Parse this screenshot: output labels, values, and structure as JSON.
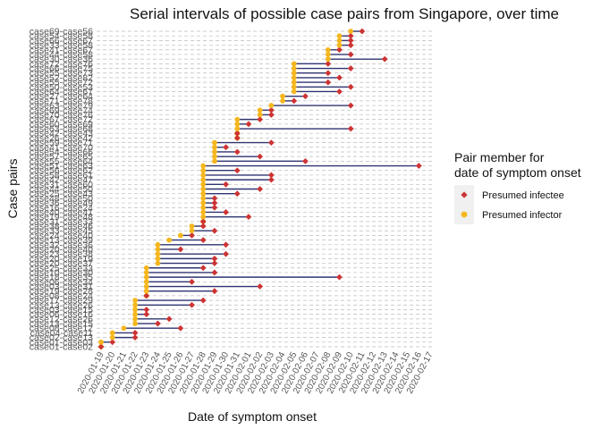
{
  "chart_data": {
    "type": "dumbbell",
    "title": "Serial intervals of possible case pairs from Singapore, over time",
    "xlabel": "Date of symptom onset",
    "ylabel": "Case pairs",
    "x_ticks": [
      "2020-01-19",
      "2020-01-20",
      "2020-01-21",
      "2020-01-22",
      "2020-01-23",
      "2020-01-24",
      "2020-01-25",
      "2020-01-26",
      "2020-01-27",
      "2020-01-28",
      "2020-01-29",
      "2020-01-30",
      "2020-01-31",
      "2020-02-01",
      "2020-02-02",
      "2020-02-03",
      "2020-02-04",
      "2020-02-05",
      "2020-02-06",
      "2020-02-07",
      "2020-02-08",
      "2020-02-09",
      "2020-02-10",
      "2020-02-11",
      "2020-02-12",
      "2020-02-13",
      "2020-02-14",
      "2020-02-15",
      "2020-02-16",
      "2020-02-17"
    ],
    "xlim": [
      "2020-01-19",
      "2020-02-17"
    ],
    "legend": {
      "title": "Pair member for\ndate of symptom onset",
      "placement": "right",
      "items": [
        {
          "label": "Presumed infectee",
          "color": "#cc3333",
          "shape": "diamond"
        },
        {
          "label": "Presumed infector",
          "color": "#f5b71f",
          "shape": "circle"
        }
      ]
    },
    "colors": {
      "segment": "#2e3470",
      "infectee": "#cc3333",
      "infector": "#f5b71f",
      "gridline": "#bbbbbb"
    },
    "pairs": [
      {
        "label": "case01-case02",
        "infector": "2020-01-19",
        "infectee": "2020-01-19"
      },
      {
        "label": "case01-case03",
        "infector": "2020-01-19",
        "infectee": "2020-01-20"
      },
      {
        "label": "case02-case13",
        "infector": "2020-01-20",
        "infectee": "2020-01-22"
      },
      {
        "label": "case04-case11",
        "infector": "2020-01-20",
        "infectee": "2020-01-22"
      },
      {
        "label": "case08-case12",
        "infector": "2020-01-21",
        "infectee": "2020-01-26"
      },
      {
        "label": "case13-case15",
        "infector": "2020-01-22",
        "infectee": "2020-01-24"
      },
      {
        "label": "case12-case26",
        "infector": "2020-01-22",
        "infectee": "2020-01-25"
      },
      {
        "label": "case06-case16",
        "infector": "2020-01-22",
        "infectee": "2020-01-23"
      },
      {
        "label": "case03-case15",
        "infector": "2020-01-22",
        "infectee": "2020-01-23"
      },
      {
        "label": "case13-case26",
        "infector": "2020-01-22",
        "infectee": "2020-01-27"
      },
      {
        "label": "case17-case29",
        "infector": "2020-01-22",
        "infectee": "2020-01-28"
      },
      {
        "label": "case08-case24",
        "infector": "2020-01-23",
        "infectee": "2020-01-23"
      },
      {
        "label": "case19-case28",
        "infector": "2020-01-23",
        "infectee": "2020-01-29"
      },
      {
        "label": "case03-case31",
        "infector": "2020-01-23",
        "infectee": "2020-02-02"
      },
      {
        "label": "case06-case34",
        "infector": "2020-01-23",
        "infectee": "2020-01-27"
      },
      {
        "label": "case18-case35",
        "infector": "2020-01-23",
        "infectee": "2020-02-09"
      },
      {
        "label": "case10-case30",
        "infector": "2020-01-23",
        "infectee": "2020-01-29"
      },
      {
        "label": "case25-case33",
        "infector": "2020-01-23",
        "infectee": "2020-01-28"
      },
      {
        "label": "case20-case37",
        "infector": "2020-01-24",
        "infectee": "2020-01-29"
      },
      {
        "label": "case20-case19",
        "infector": "2020-01-24",
        "infectee": "2020-01-29"
      },
      {
        "label": "case23-case38",
        "infector": "2020-01-24",
        "infectee": "2020-01-30"
      },
      {
        "label": "case20-case40",
        "infector": "2020-01-24",
        "infectee": "2020-01-26"
      },
      {
        "label": "case32-case36",
        "infector": "2020-01-24",
        "infectee": "2020-01-30"
      },
      {
        "label": "case13-case39",
        "infector": "2020-01-25",
        "infectee": "2020-01-28"
      },
      {
        "label": "case24-case40",
        "infector": "2020-01-26",
        "infectee": "2020-01-27"
      },
      {
        "label": "case33-case45",
        "infector": "2020-01-27",
        "infectee": "2020-01-29"
      },
      {
        "label": "case38-case46",
        "infector": "2020-01-27",
        "infectee": "2020-01-28"
      },
      {
        "label": "case31-case33",
        "infector": "2020-01-28",
        "infectee": "2020-01-28"
      },
      {
        "label": "case19-case48",
        "infector": "2020-01-28",
        "infectee": "2020-02-01"
      },
      {
        "label": "case40-case41",
        "infector": "2020-01-28",
        "infectee": "2020-01-30"
      },
      {
        "label": "case16-case24",
        "infector": "2020-01-28",
        "infectee": "2020-01-29"
      },
      {
        "label": "case36-case49",
        "infector": "2020-01-28",
        "infectee": "2020-01-29"
      },
      {
        "label": "case48-case50",
        "infector": "2020-01-28",
        "infectee": "2020-01-29"
      },
      {
        "label": "case25-case43",
        "infector": "2020-01-28",
        "infectee": "2020-01-31"
      },
      {
        "label": "case44-case50",
        "infector": "2020-01-28",
        "infectee": "2020-02-02"
      },
      {
        "label": "case31-case60",
        "infector": "2020-01-28",
        "infectee": "2020-01-30"
      },
      {
        "label": "case42-case47",
        "infector": "2020-01-28",
        "infectee": "2020-02-03"
      },
      {
        "label": "case58-case61",
        "infector": "2020-01-28",
        "infectee": "2020-02-03"
      },
      {
        "label": "case56-case62",
        "infector": "2020-01-28",
        "infectee": "2020-01-31"
      },
      {
        "label": "case51-case63",
        "infector": "2020-01-28",
        "infectee": "2020-02-16"
      },
      {
        "label": "case55-case64",
        "infector": "2020-01-29",
        "infectee": "2020-02-06"
      },
      {
        "label": "case57-case65",
        "infector": "2020-01-29",
        "infectee": "2020-02-02"
      },
      {
        "label": "case54-case66",
        "infector": "2020-01-29",
        "infectee": "2020-01-31"
      },
      {
        "label": "case41-case70",
        "infector": "2020-01-29",
        "infectee": "2020-01-30"
      },
      {
        "label": "case59-case71",
        "infector": "2020-01-29",
        "infectee": "2020-02-03"
      },
      {
        "label": "case26-case42",
        "infector": "2020-01-31",
        "infectee": "2020-01-31"
      },
      {
        "label": "case42-case43",
        "infector": "2020-01-31",
        "infectee": "2020-01-31"
      },
      {
        "label": "case63-case68",
        "infector": "2020-01-31",
        "infectee": "2020-02-10"
      },
      {
        "label": "case60-case69",
        "infector": "2020-01-31",
        "infectee": "2020-02-01"
      },
      {
        "label": "case67-case72",
        "infector": "2020-01-31",
        "infectee": "2020-02-02"
      },
      {
        "label": "case70-case76",
        "infector": "2020-02-02",
        "infectee": "2020-02-03"
      },
      {
        "label": "case69-case74",
        "infector": "2020-02-02",
        "infectee": "2020-02-03"
      },
      {
        "label": "case63-case79",
        "infector": "2020-02-03",
        "infectee": "2020-02-10"
      },
      {
        "label": "case71-case78",
        "infector": "2020-02-04",
        "infectee": "2020-02-05"
      },
      {
        "label": "case27-case64",
        "infector": "2020-02-04",
        "infectee": "2020-02-06"
      },
      {
        "label": "case64-case67",
        "infector": "2020-02-05",
        "infectee": "2020-02-09"
      },
      {
        "label": "case50-case53",
        "infector": "2020-02-05",
        "infectee": "2020-02-10"
      },
      {
        "label": "case55-case72",
        "infector": "2020-02-05",
        "infectee": "2020-02-08"
      },
      {
        "label": "case52-case82",
        "infector": "2020-02-05",
        "infectee": "2020-02-09"
      },
      {
        "label": "case55-case73",
        "infector": "2020-02-05",
        "infectee": "2020-02-08"
      },
      {
        "label": "case66-case75",
        "infector": "2020-02-05",
        "infectee": "2020-02-10"
      },
      {
        "label": "case72-case76",
        "infector": "2020-02-05",
        "infectee": "2020-02-08"
      },
      {
        "label": "case30-case36",
        "infector": "2020-02-08",
        "infectee": "2020-02-13"
      },
      {
        "label": "case44-case58",
        "infector": "2020-02-08",
        "infectee": "2020-02-10"
      },
      {
        "label": "case41-case67",
        "infector": "2020-02-08",
        "infectee": "2020-02-09"
      },
      {
        "label": "case33-case58",
        "infector": "2020-02-09",
        "infectee": "2020-02-10"
      },
      {
        "label": "case66-case67",
        "infector": "2020-02-09",
        "infectee": "2020-02-10"
      },
      {
        "label": "case54-case58",
        "infector": "2020-02-09",
        "infectee": "2020-02-10"
      },
      {
        "label": "case69-case56",
        "infector": "2020-02-10",
        "infectee": "2020-02-11"
      }
    ]
  }
}
